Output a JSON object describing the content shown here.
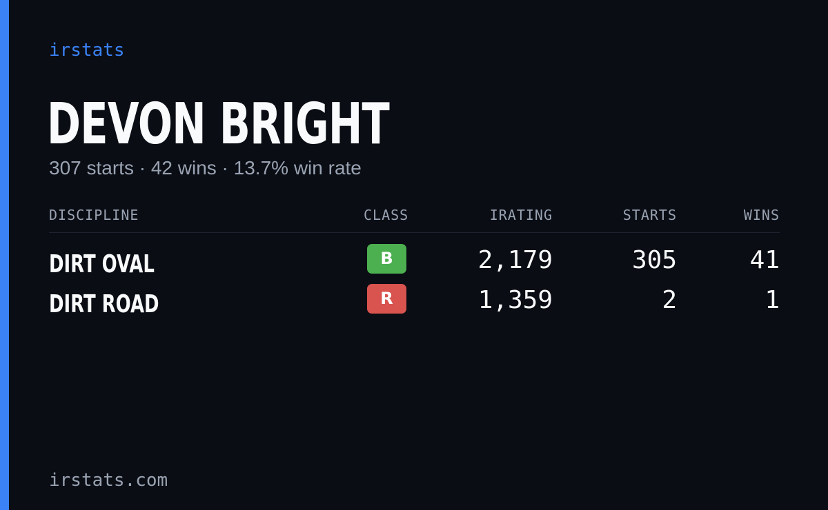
{
  "brand": "irstats",
  "player": {
    "name": "DEVON BRIGHT",
    "summary": "307 starts · 42 wins · 13.7% win rate"
  },
  "table": {
    "headers": {
      "discipline": "DISCIPLINE",
      "class": "CLASS",
      "irating": "IRATING",
      "starts": "STARTS",
      "wins": "WINS"
    },
    "rows": [
      {
        "discipline": "DIRT OVAL",
        "class": "B",
        "class_color": "#4caf50",
        "irating": "2,179",
        "starts": "305",
        "wins": "41"
      },
      {
        "discipline": "DIRT ROAD",
        "class": "R",
        "class_color": "#d9534f",
        "irating": "1,359",
        "starts": "2",
        "wins": "1"
      }
    ]
  },
  "footer": "irstats.com",
  "colors": {
    "accent": "#3b82f6",
    "background": "#0a0d14",
    "muted_text": "#9aa3b2"
  }
}
